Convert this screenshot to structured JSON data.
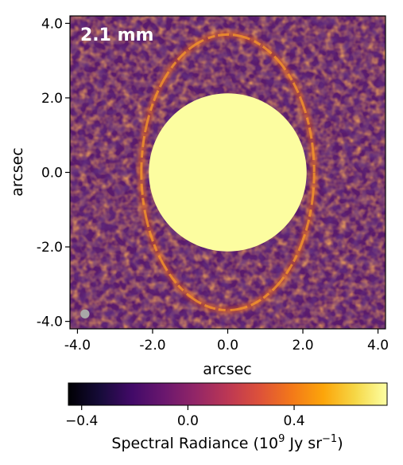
{
  "chart_data": {
    "type": "heatmap",
    "panel_label": "2.1 mm",
    "xlabel": "arcsec",
    "ylabel": "arcsec",
    "xlim": [
      -4.2,
      4.2
    ],
    "ylim": [
      -4.2,
      4.2
    ],
    "x_ticks": [
      -4.0,
      -2.0,
      0.0,
      2.0,
      4.0
    ],
    "x_tick_labels": [
      "-4.0",
      "-2.0",
      "0.0",
      "2.0",
      "4.0"
    ],
    "y_ticks": [
      -4.0,
      -2.0,
      0.0,
      2.0,
      4.0
    ],
    "y_tick_labels": [
      "-4.0",
      "-2.0",
      "0.0",
      "2.0",
      "4.0"
    ],
    "mask": {
      "type": "circle",
      "center": [
        0.0,
        0.0
      ],
      "radius": 2.1,
      "color": "#fcfda0"
    },
    "ring": {
      "type": "ellipse",
      "center": [
        0.0,
        0.0
      ],
      "semi_major_axis": 3.7,
      "semi_minor_axis": 2.3,
      "brightest_side": "north-south"
    },
    "beam": {
      "center": [
        -3.8,
        -3.8
      ],
      "radius": 0.12,
      "color": "#a8a8a8"
    },
    "colormap": "inferno",
    "colorbar": {
      "orientation": "horizontal",
      "range": [
        -0.45,
        0.75
      ],
      "ticks": [
        -0.4,
        0.0,
        0.4
      ],
      "tick_labels": [
        "−0.4",
        "0.0",
        "0.4"
      ],
      "label_main": "Spectral Radiance (10",
      "label_sup1": "9",
      "label_mid": " Jy sr",
      "label_sup2": "−1",
      "label_end": ")"
    },
    "grid": false
  }
}
